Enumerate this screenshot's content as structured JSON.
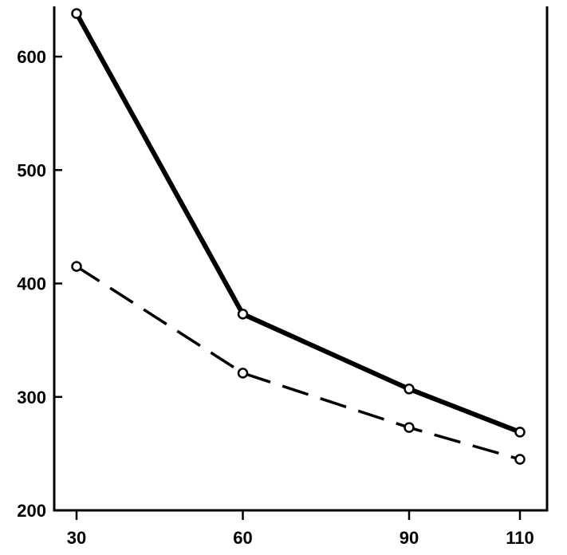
{
  "chart_data": {
    "type": "line",
    "title": "",
    "xlabel": "",
    "ylabel": "",
    "x": [
      30,
      60,
      90,
      110
    ],
    "xlim": [
      25,
      115
    ],
    "ylim": [
      200,
      650
    ],
    "x_ticks": [
      30,
      60,
      90,
      110
    ],
    "y_ticks": [
      200,
      300,
      400,
      500,
      600
    ],
    "grid": false,
    "legend": "none",
    "series": [
      {
        "style": "solid",
        "color": "#000000",
        "values": [
          638,
          373,
          307,
          269
        ]
      },
      {
        "style": "dashed",
        "color": "#000000",
        "values": [
          415,
          321,
          273,
          245
        ]
      }
    ]
  }
}
